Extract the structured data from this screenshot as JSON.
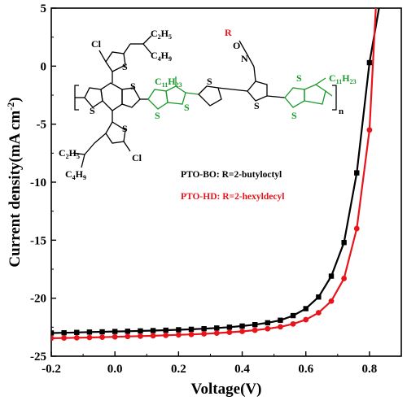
{
  "chart_data": {
    "type": "line",
    "xlabel": "Voltage(V)",
    "ylabel_main": "Current density(mA cm",
    "ylabel_sup": "-2",
    "ylabel_close": ")",
    "xlim": [
      -0.2,
      0.9
    ],
    "ylim": [
      -25,
      5
    ],
    "x_ticks": [
      -0.2,
      0.0,
      0.2,
      0.4,
      0.6,
      0.8
    ],
    "x_tick_labels": [
      "-0.2",
      "0.0",
      "0.2",
      "0.4",
      "0.6",
      "0.8"
    ],
    "y_ticks": [
      5,
      0,
      -5,
      -10,
      -15,
      -20,
      -25
    ],
    "y_tick_labels": [
      "5",
      "0",
      "-5",
      "-10",
      "-15",
      "-20",
      "-25"
    ],
    "grid": false,
    "series": [
      {
        "name": "PTO-BO: R=2-butyloctyl",
        "color": "#000000",
        "marker": "square",
        "x": [
          -0.2,
          -0.16,
          -0.12,
          -0.08,
          -0.04,
          0.0,
          0.04,
          0.08,
          0.12,
          0.16,
          0.2,
          0.24,
          0.28,
          0.32,
          0.36,
          0.4,
          0.44,
          0.48,
          0.52,
          0.56,
          0.6,
          0.64,
          0.68,
          0.72,
          0.76,
          0.8,
          0.83
        ],
        "y": [
          -23.0,
          -22.98,
          -22.95,
          -22.92,
          -22.9,
          -22.87,
          -22.85,
          -22.82,
          -22.79,
          -22.76,
          -22.72,
          -22.68,
          -22.63,
          -22.57,
          -22.5,
          -22.4,
          -22.28,
          -22.12,
          -21.9,
          -21.5,
          -20.9,
          -19.9,
          -18.1,
          -15.2,
          -9.2,
          0.3,
          5.0
        ]
      },
      {
        "name": "PTO-HD: R=2-hexyldecyl",
        "color": "#e8141b",
        "marker": "circle",
        "x": [
          -0.2,
          -0.16,
          -0.12,
          -0.08,
          -0.04,
          0.0,
          0.04,
          0.08,
          0.12,
          0.16,
          0.2,
          0.24,
          0.28,
          0.32,
          0.36,
          0.4,
          0.44,
          0.48,
          0.52,
          0.56,
          0.6,
          0.64,
          0.68,
          0.72,
          0.76,
          0.8,
          0.82
        ],
        "y": [
          -23.45,
          -23.43,
          -23.41,
          -23.39,
          -23.36,
          -23.33,
          -23.3,
          -23.27,
          -23.24,
          -23.2,
          -23.16,
          -23.12,
          -23.07,
          -23.01,
          -22.94,
          -22.86,
          -22.76,
          -22.63,
          -22.47,
          -22.22,
          -21.85,
          -21.25,
          -20.25,
          -18.3,
          -14.0,
          -5.5,
          5.0
        ]
      }
    ]
  },
  "legend": [
    {
      "label": "PTO-BO: R=2-butyloctyl",
      "color": "#000000"
    },
    {
      "label": "PTO-HD: R=2-hexyldecyl",
      "color": "#e8141b"
    }
  ],
  "structure": {
    "top_substituent_a": "Cl",
    "top_substituent_b": "C",
    "top_substituent_b_sub": "2",
    "top_substituent_b_rest": "H",
    "top_substituent_b_sub2": "5",
    "top_substituent_c": "C",
    "top_substituent_c_sub": "4",
    "top_substituent_c_rest": "H",
    "top_substituent_c_sub2": "9",
    "bottom_substituent_a": "Cl",
    "bottom_substituent_b": "C",
    "bottom_substituent_b_sub": "2",
    "bottom_substituent_b_rest": "H",
    "bottom_substituent_b_sub2": "5",
    "bottom_substituent_c": "C",
    "bottom_substituent_c_sub": "4",
    "bottom_substituent_c_rest": "H",
    "bottom_substituent_c_sub2": "9",
    "alkyl_left": "C",
    "alkyl_left_sub": "11",
    "alkyl_left_rest": "H",
    "alkyl_left_sub2": "23",
    "alkyl_right": "C",
    "alkyl_right_sub": "11",
    "alkyl_right_rest": "H",
    "alkyl_right_sub2": "23",
    "oxime_r": "R",
    "oxime_o": "O",
    "oxime_n": "N",
    "sulfur": "S",
    "repeat_n": "n",
    "black": "#000000",
    "green": "#1a9a2a",
    "red": "#e8141b"
  }
}
